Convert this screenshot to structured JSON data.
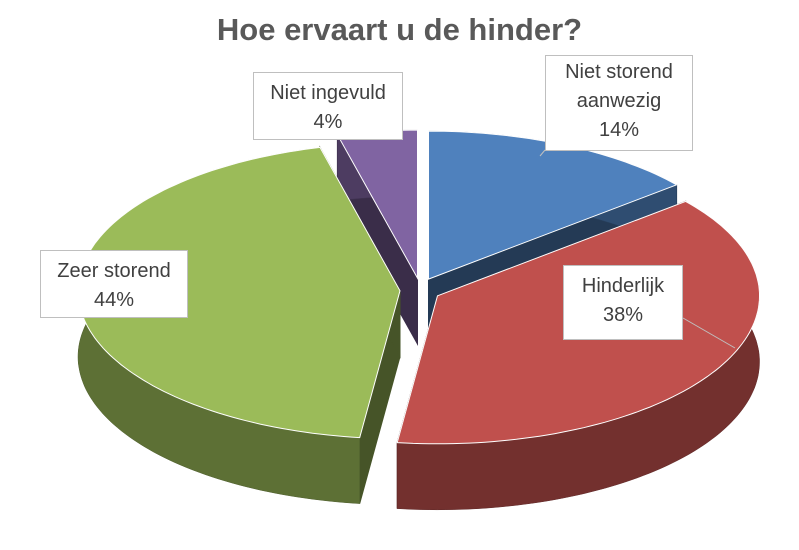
{
  "chart_data": {
    "type": "pie3d",
    "title": "Hoe ervaart u de hinder?",
    "categories": [
      "Niet storend aanwezig",
      "Hinderlijk",
      "Zeer storend",
      "Niet ingevuld"
    ],
    "values": [
      14,
      38,
      44,
      4
    ],
    "value_labels": [
      "14%",
      "38%",
      "44%",
      "4%"
    ],
    "colors": [
      "#4f81bd",
      "#c0504d",
      "#9bbb59",
      "#8064a2"
    ]
  }
}
